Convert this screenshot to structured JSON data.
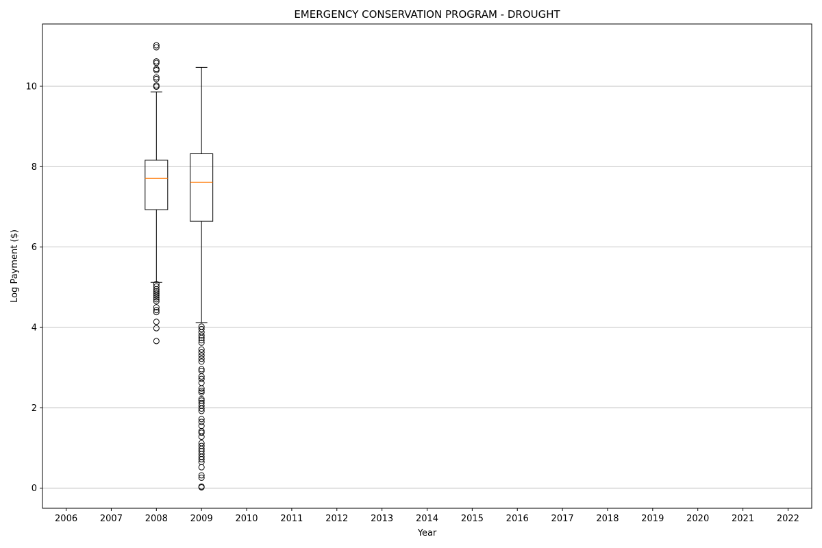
{
  "chart_data": {
    "type": "boxplot",
    "title": "EMERGENCY CONSERVATION PROGRAM - DROUGHT",
    "xlabel": "Year",
    "ylabel": "Log Payment ($)",
    "categories": [
      "2006",
      "2007",
      "2008",
      "2009",
      "2010",
      "2011",
      "2012",
      "2013",
      "2014",
      "2015",
      "2016",
      "2017",
      "2018",
      "2019",
      "2020",
      "2021",
      "2022"
    ],
    "ylim": [
      -0.5,
      11.55
    ],
    "yticks": [
      0,
      2,
      4,
      6,
      8,
      10
    ],
    "grid": "y",
    "boxes": [
      {
        "category": "2008",
        "whisker_low": 5.12,
        "q1": 6.93,
        "median": 7.71,
        "q3": 8.16,
        "whisker_high": 9.86,
        "outliers": [
          11.02,
          10.97,
          10.62,
          10.58,
          10.43,
          10.4,
          10.22,
          10.18,
          10.02,
          9.99,
          5.08,
          5.02,
          4.95,
          4.9,
          4.85,
          4.8,
          4.75,
          4.7,
          4.65,
          4.5,
          4.43,
          4.38,
          4.14,
          3.98,
          3.66
        ]
      },
      {
        "category": "2009",
        "whisker_low": 4.12,
        "q1": 6.64,
        "median": 7.61,
        "q3": 8.32,
        "whisker_high": 10.47,
        "outliers": [
          4.02,
          3.96,
          3.88,
          3.8,
          3.74,
          3.68,
          3.62,
          3.45,
          3.38,
          3.3,
          3.22,
          3.15,
          2.96,
          2.92,
          2.78,
          2.72,
          2.62,
          2.48,
          2.42,
          2.38,
          2.22,
          2.18,
          2.12,
          2.05,
          1.98,
          1.92,
          1.72,
          1.65,
          1.55,
          1.42,
          1.38,
          1.28,
          1.12,
          1.05,
          0.98,
          0.92,
          0.85,
          0.78,
          0.72,
          0.65,
          0.52,
          0.32,
          0.26,
          0.04,
          0.02
        ]
      }
    ],
    "colors": {
      "box": "#000000",
      "median": "#ff7f0e",
      "grid": "#b0b0b0",
      "axis": "#000000"
    }
  }
}
